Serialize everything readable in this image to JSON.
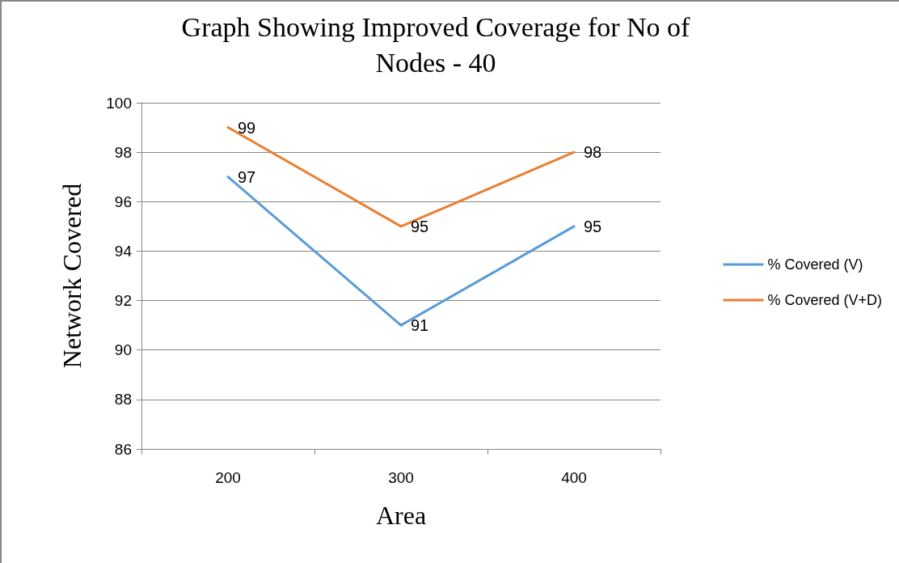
{
  "chart_data": {
    "type": "line",
    "title": "Graph Showing Improved Coverage for No of\nNodes - 40",
    "xlabel": "Area",
    "ylabel": "Network Covered",
    "categories": [
      "200",
      "300",
      "400"
    ],
    "series": [
      {
        "name": "% Covered (V)",
        "color": "#5b9bd5",
        "values": [
          97,
          91,
          95
        ]
      },
      {
        "name": "% Covered (V+D)",
        "color": "#ed7d31",
        "values": [
          99,
          95,
          98
        ]
      }
    ],
    "ylim": [
      86,
      100
    ],
    "yticks": [
      86,
      88,
      90,
      92,
      94,
      96,
      98,
      100
    ],
    "grid": "y",
    "legend": "right",
    "marker": "none",
    "line_style": "solid",
    "data_labels": true
  }
}
